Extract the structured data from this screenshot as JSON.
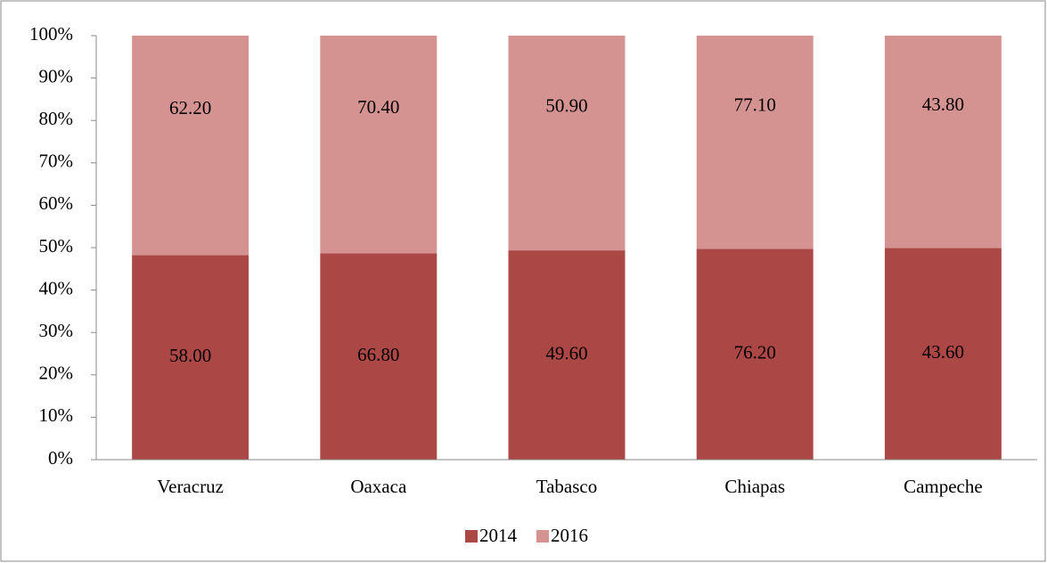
{
  "chart_data": {
    "type": "bar",
    "stacking": "percent",
    "categories": [
      "Veracruz",
      "Oaxaca",
      "Tabasco",
      "Chiapas",
      "Campeche"
    ],
    "series": [
      {
        "name": "2014",
        "color": "#ab4744",
        "values": [
          58,
          66.8,
          49.6,
          76.2,
          43.6
        ],
        "value_labels": [
          "58.00",
          "66.80",
          "49.60",
          "76.20",
          "43.60"
        ]
      },
      {
        "name": "2016",
        "color": "#d49391",
        "values": [
          62.2,
          70.4,
          50.9,
          77.1,
          43.8
        ],
        "value_labels": [
          "62.20",
          "70.40",
          "50.90",
          "77.10",
          "43.80"
        ]
      }
    ],
    "ylim": [
      0,
      100
    ],
    "yticks": [
      {
        "value": 0,
        "label": "0%"
      },
      {
        "value": 10,
        "label": "10%"
      },
      {
        "value": 20,
        "label": "20%"
      },
      {
        "value": 30,
        "label": "30%"
      },
      {
        "value": 40,
        "label": "40%"
      },
      {
        "value": 50,
        "label": "50%"
      },
      {
        "value": 60,
        "label": "60%"
      },
      {
        "value": 70,
        "label": "70%"
      },
      {
        "value": 80,
        "label": "80%"
      },
      {
        "value": 90,
        "label": "90%"
      },
      {
        "value": 100,
        "label": "100%"
      }
    ],
    "legend": "bottom"
  }
}
